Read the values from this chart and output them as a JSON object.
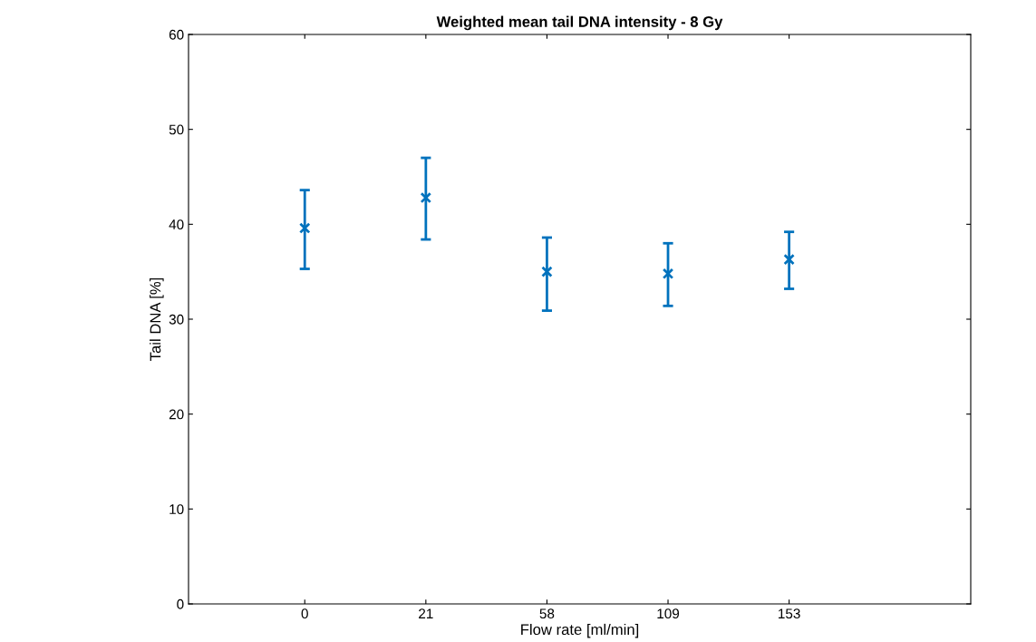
{
  "chart_data": {
    "type": "scatter",
    "title": "Weighted mean tail DNA intensity - 8 Gy",
    "xlabel": "Flow rate [ml/min]",
    "ylabel": "Tail DNA [%]",
    "categories": [
      "0",
      "21",
      "58",
      "109",
      "153"
    ],
    "series": [
      {
        "color": "#0072bd",
        "values": [
          39.6,
          42.8,
          35.0,
          34.8,
          36.3
        ],
        "errors": [
          [
            35.3,
            43.6
          ],
          [
            38.4,
            47.0
          ],
          [
            30.9,
            38.6
          ],
          [
            31.4,
            38.0
          ],
          [
            33.2,
            39.2
          ]
        ]
      }
    ],
    "marker": "cross",
    "ylim": [
      0,
      60
    ],
    "yticks": [
      0,
      10,
      20,
      30,
      40,
      50,
      60
    ],
    "grid": false,
    "legend": false
  }
}
